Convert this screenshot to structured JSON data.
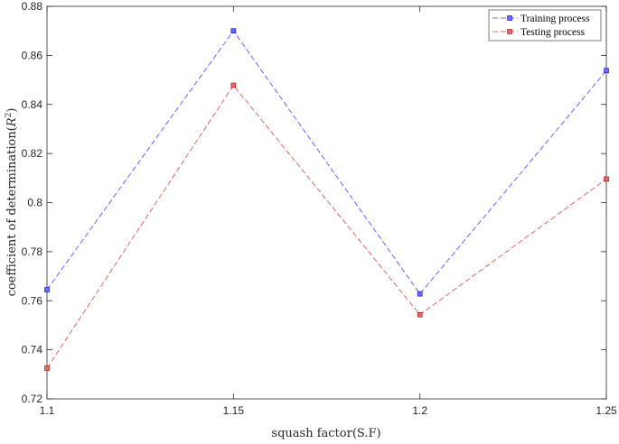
{
  "chart_data": {
    "type": "line",
    "title": "",
    "xlabel": "squash factor(S.F)",
    "ylabel_main": "coefficient of determination(",
    "ylabel_var": "R",
    "ylabel_sup": "2",
    "ylabel_close": ")",
    "x": [
      1.1,
      1.15,
      1.2,
      1.25
    ],
    "xticks": [
      "1.1",
      "1.15",
      "1.2",
      "1.25"
    ],
    "xlim": [
      1.1,
      1.25
    ],
    "ylim": [
      0.72,
      0.88
    ],
    "yticks": [
      "0.72",
      "0.74",
      "0.76",
      "0.78",
      "0.8",
      "0.82",
      "0.84",
      "0.86",
      "0.88"
    ],
    "grid": false,
    "legend_position": "top-right",
    "series": [
      {
        "name": "Training process",
        "values": [
          0.7645,
          0.87,
          0.7628,
          0.8538
        ],
        "color": "#0000ff"
      },
      {
        "name": "Testing process",
        "values": [
          0.7325,
          0.8478,
          0.7543,
          0.8096
        ],
        "color": "#cc0000"
      }
    ]
  }
}
